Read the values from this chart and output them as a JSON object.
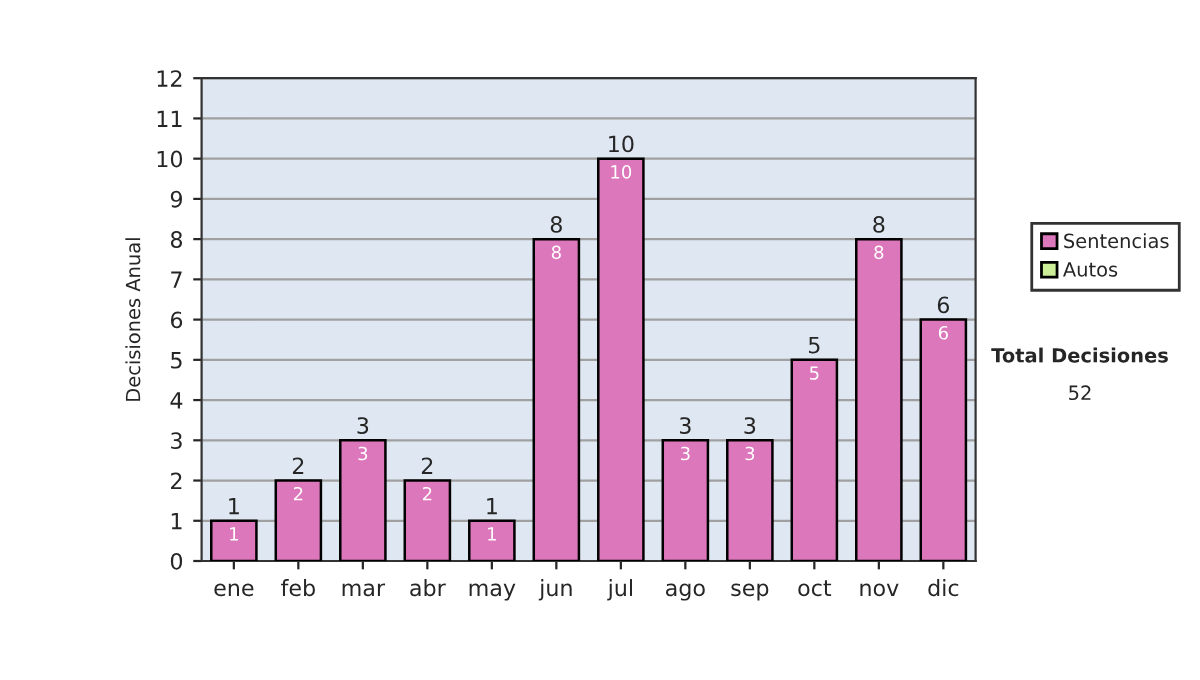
{
  "chart_data": {
    "type": "bar",
    "ylabel": "Decisiones Anual",
    "categories": [
      "ene",
      "feb",
      "mar",
      "abr",
      "may",
      "jun",
      "jul",
      "ago",
      "sep",
      "oct",
      "nov",
      "dic"
    ],
    "series": [
      {
        "name": "Sentencias",
        "color": "#dd77bb",
        "values": [
          1,
          2,
          3,
          2,
          1,
          8,
          10,
          3,
          3,
          5,
          8,
          6
        ]
      },
      {
        "name": "Autos",
        "color": "#ccee99",
        "values": [
          null,
          null,
          null,
          null,
          null,
          null,
          null,
          null,
          null,
          null,
          null,
          null
        ]
      }
    ],
    "totals": [
      "1",
      "2",
      "3",
      "2",
      "1",
      "8",
      "10",
      "3",
      "3",
      "5",
      "8",
      "6"
    ],
    "data_labels": true,
    "ylim": [
      0,
      12
    ],
    "yticks": [
      0,
      1,
      2,
      3,
      4,
      5,
      6,
      7,
      8,
      9,
      10,
      11,
      12
    ],
    "grid": "y",
    "legend": "right",
    "annotations": [
      "Total Decisiones",
      "52"
    ]
  }
}
